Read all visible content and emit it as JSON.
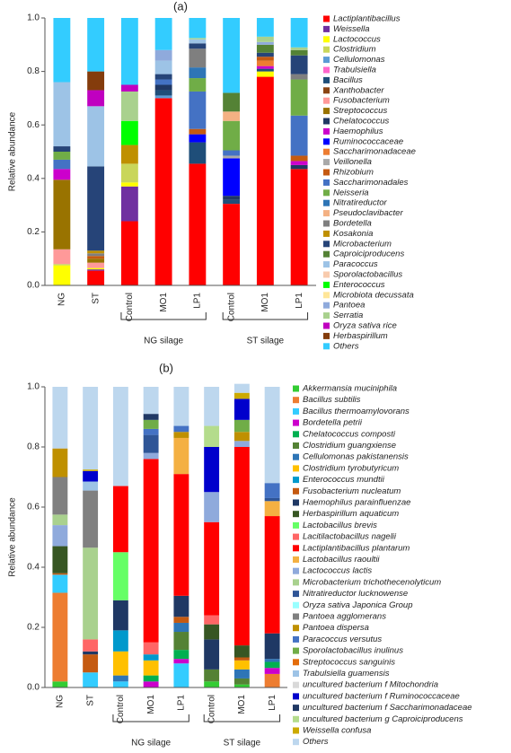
{
  "chart_data": [
    {
      "type": "bar",
      "stacked": true,
      "title": "(a)",
      "y_label": "Relative abundance",
      "categories": [
        "NG",
        "ST",
        "Control",
        "MO1",
        "LP1",
        "Control",
        "MO1",
        "LP1"
      ],
      "category_groups": [
        null,
        null,
        "NG silage",
        "NG silage",
        "NG silage",
        "ST silage",
        "ST silage",
        "ST silage"
      ],
      "ylim": [
        0,
        1
      ],
      "yticks": [
        {
          "value": 0,
          "label": "0.0"
        },
        0.2,
        0.4,
        0.6,
        0.8,
        {
          "value": 1,
          "label": "1.0"
        }
      ],
      "series": [
        {
          "name": "Lactiplantibacillus",
          "color": "#ff0000",
          "values": [
            0,
            0.055,
            0.24,
            0.7,
            0.455,
            0.305,
            0.78,
            0.435
          ]
        },
        {
          "name": "Weissella",
          "color": "#7030a0",
          "values": [
            0,
            0.005,
            0.13,
            0,
            0,
            0,
            0,
            0
          ]
        },
        {
          "name": "Lactococcus",
          "color": "#ffff00",
          "values": [
            0.075,
            0.005,
            0.015,
            0,
            0,
            0,
            0.02,
            0
          ]
        },
        {
          "name": "Clostridium",
          "color": "#c9d65a",
          "values": [
            0.005,
            0,
            0.07,
            0,
            0,
            0,
            0,
            0
          ]
        },
        {
          "name": "Cellulomonas",
          "color": "#5b9bd5",
          "values": [
            0,
            0,
            0,
            0.01,
            0,
            0,
            0,
            0
          ]
        },
        {
          "name": "Trabulsiella",
          "color": "#ff66cc",
          "values": [
            0,
            0,
            0,
            0,
            0,
            0,
            0,
            0
          ]
        },
        {
          "name": "Bacillus",
          "color": "#1f4e79",
          "values": [
            0,
            0,
            0,
            0.02,
            0.08,
            0.015,
            0.01,
            0
          ]
        },
        {
          "name": "Xanthobacter",
          "color": "#8b4513",
          "values": [
            0,
            0,
            0,
            0,
            0,
            0,
            0,
            0
          ]
        },
        {
          "name": "Fusobacterium",
          "color": "#ff9999",
          "values": [
            0.055,
            0.02,
            0,
            0,
            0,
            0,
            0,
            0
          ]
        },
        {
          "name": "Streptococcus",
          "color": "#997300",
          "values": [
            0.26,
            0.015,
            0,
            0,
            0,
            0,
            0,
            0
          ]
        },
        {
          "name": "Chelatococcus",
          "color": "#203864",
          "values": [
            0,
            0,
            0,
            0.02,
            0,
            0.015,
            0,
            0.015
          ]
        },
        {
          "name": "Haemophilus",
          "color": "#cc00cc",
          "values": [
            0.04,
            0,
            0,
            0,
            0,
            0,
            0.01,
            0.015
          ]
        },
        {
          "name": "Ruminococcaceae",
          "color": "#0000ff",
          "values": [
            0,
            0,
            0,
            0,
            0.03,
            0.14,
            0,
            0
          ]
        },
        {
          "name": "Saccharimonadaceae",
          "color": "#ed7d31",
          "values": [
            0,
            0,
            0,
            0,
            0,
            0,
            0.02,
            0
          ]
        },
        {
          "name": "Veillonella",
          "color": "#a9a9a9",
          "values": [
            0,
            0,
            0,
            0,
            0,
            0.01,
            0,
            0
          ]
        },
        {
          "name": "Rhizobium",
          "color": "#c55a11",
          "values": [
            0,
            0.01,
            0,
            0,
            0.02,
            0,
            0.015,
            0.02
          ]
        },
        {
          "name": "Saccharimonadales",
          "color": "#4472c4",
          "values": [
            0.035,
            0,
            0,
            0.02,
            0.14,
            0.02,
            0,
            0.15
          ]
        },
        {
          "name": "Neisseria",
          "color": "#70ad47",
          "values": [
            0.03,
            0,
            0,
            0,
            0.05,
            0.11,
            0,
            0.135
          ]
        },
        {
          "name": "Nitratireductor",
          "color": "#2e75b6",
          "values": [
            0,
            0,
            0,
            0,
            0.04,
            0,
            0,
            0
          ]
        },
        {
          "name": "Pseudoclavibacter",
          "color": "#f4b183",
          "values": [
            0,
            0,
            0,
            0,
            0,
            0.035,
            0,
            0
          ]
        },
        {
          "name": "Bordetella",
          "color": "#7f7f7f",
          "values": [
            0,
            0.01,
            0,
            0,
            0.07,
            0,
            0,
            0.02
          ]
        },
        {
          "name": "Kosakonia",
          "color": "#bf9000",
          "values": [
            0,
            0.01,
            0.07,
            0,
            0,
            0,
            0,
            0
          ]
        },
        {
          "name": "Microbacterium",
          "color": "#264478",
          "values": [
            0.02,
            0.315,
            0,
            0.02,
            0.02,
            0,
            0.015,
            0.07
          ]
        },
        {
          "name": "Caproiciproducens",
          "color": "#548235",
          "values": [
            0,
            0,
            0,
            0,
            0,
            0.07,
            0.03,
            0.02
          ]
        },
        {
          "name": "Paracoccus",
          "color": "#9dc3e6",
          "values": [
            0.24,
            0.225,
            0,
            0.05,
            0.015,
            0,
            0,
            0
          ]
        },
        {
          "name": "Sporolactobacillus",
          "color": "#f8cbad",
          "values": [
            0,
            0,
            0,
            0,
            0,
            0,
            0,
            0
          ]
        },
        {
          "name": "Enterococcus",
          "color": "#00ff00",
          "values": [
            0,
            0,
            0.09,
            0,
            0,
            0,
            0,
            0
          ]
        },
        {
          "name": "Microbiota decussata",
          "color": "#ffe699",
          "values": [
            0,
            0,
            0,
            0,
            0,
            0,
            0,
            0
          ]
        },
        {
          "name": "Pantoea",
          "color": "#8faadc",
          "values": [
            0,
            0,
            0,
            0.04,
            0,
            0,
            0.01,
            0
          ]
        },
        {
          "name": "Serratia",
          "color": "#a9d18e",
          "values": [
            0,
            0,
            0.11,
            0,
            0.005,
            0,
            0.02,
            0.01
          ]
        },
        {
          "name": "Oryza sativa rice",
          "color": "#c000c0",
          "values": [
            0,
            0.06,
            0.025,
            0,
            0,
            0,
            0,
            0
          ]
        },
        {
          "name": "Herbaspirillum",
          "color": "#843c0c",
          "values": [
            0,
            0.07,
            0,
            0,
            0,
            0,
            0,
            0
          ]
        },
        {
          "name": "Others",
          "color": "#33ccff",
          "values": [
            0.24,
            0.2,
            0.25,
            0.12,
            0.075,
            0.28,
            0.07,
            0.11
          ]
        }
      ]
    },
    {
      "type": "bar",
      "stacked": true,
      "title": "(b)",
      "y_label": "Relative abundance",
      "categories": [
        "NG",
        "ST",
        "Control",
        "MO1",
        "LP1",
        "Control",
        "MO1",
        "LP1"
      ],
      "category_groups": [
        null,
        null,
        "NG silage",
        "NG silage",
        "NG silage",
        "ST silage",
        "ST silage",
        "ST silage"
      ],
      "ylim": [
        0,
        1
      ],
      "yticks": [
        {
          "value": 0,
          "label": "0.0"
        },
        0.2,
        0.4,
        0.6,
        0.8,
        {
          "value": 1,
          "label": "1.0"
        }
      ],
      "series": [
        {
          "name": "Akkermansia muciniphila",
          "color": "#33cc33",
          "values": [
            0.02,
            0,
            0,
            0,
            0,
            0.02,
            0.01,
            0
          ]
        },
        {
          "name": "Bacillus subtilis",
          "color": "#ed7d31",
          "values": [
            0.295,
            0,
            0,
            0,
            0,
            0,
            0,
            0.045
          ]
        },
        {
          "name": "Bacillus thermoamylovorans",
          "color": "#33ccff",
          "values": [
            0.06,
            0.05,
            0.02,
            0,
            0.08,
            0,
            0,
            0
          ]
        },
        {
          "name": "Bordetella petrii",
          "color": "#cc00cc",
          "values": [
            0,
            0,
            0,
            0.02,
            0.015,
            0,
            0,
            0.02
          ]
        },
        {
          "name": "Chelatococcus composti",
          "color": "#00b050",
          "values": [
            0,
            0,
            0,
            0.02,
            0.03,
            0,
            0,
            0.02
          ]
        },
        {
          "name": "Clostridium guangxiense",
          "color": "#548235",
          "values": [
            0,
            0,
            0,
            0,
            0.06,
            0.04,
            0.02,
            0
          ]
        },
        {
          "name": "Cellulomonas pakistanensis",
          "color": "#2e75b6",
          "values": [
            0,
            0,
            0.02,
            0,
            0.03,
            0,
            0.03,
            0.01
          ]
        },
        {
          "name": "Clostridium tyrobutyricum",
          "color": "#ffc000",
          "values": [
            0,
            0,
            0.08,
            0.05,
            0,
            0,
            0.03,
            0
          ]
        },
        {
          "name": "Enterococcus mundtii",
          "color": "#0099cc",
          "values": [
            0,
            0,
            0.07,
            0.02,
            0,
            0,
            0,
            0
          ]
        },
        {
          "name": "Fusobacterium nucleatum",
          "color": "#c55a11",
          "values": [
            0.005,
            0.06,
            0,
            0,
            0.02,
            0,
            0.01,
            0
          ]
        },
        {
          "name": "Haemophilus parainfluenzae",
          "color": "#1f3864",
          "values": [
            0,
            0.01,
            0.1,
            0,
            0.07,
            0.1,
            0,
            0.085
          ]
        },
        {
          "name": "Herbaspirillum aquaticum",
          "color": "#375623",
          "values": [
            0.09,
            0,
            0,
            0,
            0,
            0.05,
            0.04,
            0
          ]
        },
        {
          "name": "Lactobacillus brevis",
          "color": "#66ff66",
          "values": [
            0,
            0,
            0.16,
            0,
            0,
            0,
            0,
            0
          ]
        },
        {
          "name": "Lacitilactobacillus nagelii",
          "color": "#ff6666",
          "values": [
            0,
            0.04,
            0,
            0.04,
            0,
            0.03,
            0,
            0
          ]
        },
        {
          "name": "Lactiplantibacillus plantarum",
          "color": "#ff0000",
          "values": [
            0,
            0,
            0.22,
            0.61,
            0.405,
            0.31,
            0.66,
            0.39
          ]
        },
        {
          "name": "Lactobacillus raoultii",
          "color": "#f4b042",
          "values": [
            0,
            0,
            0,
            0,
            0.12,
            0,
            0,
            0.05
          ]
        },
        {
          "name": "Lactococcus lactis",
          "color": "#8faadc",
          "values": [
            0.07,
            0,
            0,
            0.02,
            0,
            0.1,
            0.02,
            0
          ]
        },
        {
          "name": "Microbacterium trichothecenolyticum",
          "color": "#a9d18e",
          "values": [
            0.035,
            0.305,
            0,
            0,
            0,
            0,
            0,
            0
          ]
        },
        {
          "name": "Nitratireductor lucknowense",
          "color": "#2f5597",
          "values": [
            0,
            0,
            0,
            0.06,
            0,
            0,
            0,
            0.01
          ]
        },
        {
          "name": "Oryza sativa Japonica Group",
          "color": "#99ffff",
          "values": [
            0,
            0,
            0,
            0,
            0,
            0,
            0,
            0
          ]
        },
        {
          "name": "Pantoea agglomerans",
          "color": "#808080",
          "values": [
            0.125,
            0.19,
            0,
            0,
            0,
            0,
            0,
            0
          ]
        },
        {
          "name": "Pantoea dispersa",
          "color": "#bf9000",
          "values": [
            0.095,
            0,
            0,
            0,
            0.02,
            0,
            0.03,
            0
          ]
        },
        {
          "name": "Paracoccus versutus",
          "color": "#4472c4",
          "values": [
            0,
            0,
            0,
            0.02,
            0.02,
            0,
            0,
            0.05
          ]
        },
        {
          "name": "Sporolactobacillus inulinus",
          "color": "#70ad47",
          "values": [
            0,
            0,
            0,
            0.03,
            0,
            0,
            0.04,
            0
          ]
        },
        {
          "name": "Streptococcus sanguinis",
          "color": "#e46c0a",
          "values": [
            0,
            0,
            0,
            0,
            0,
            0,
            0,
            0
          ]
        },
        {
          "name": "Trabulsiella guamensis",
          "color": "#9dc3e6",
          "values": [
            0,
            0.03,
            0,
            0,
            0,
            0,
            0,
            0
          ]
        },
        {
          "name": "uncultured bacterium f Mitochondria",
          "color": "#d9d9d9",
          "values": [
            0,
            0,
            0,
            0,
            0,
            0,
            0,
            0
          ]
        },
        {
          "name": "uncultured bacterium f Ruminococcaceae",
          "color": "#0000cc",
          "values": [
            0,
            0.035,
            0,
            0,
            0,
            0.15,
            0.07,
            0
          ]
        },
        {
          "name": "uncultured bacterium f Saccharimonadaceae",
          "color": "#203864",
          "values": [
            0,
            0,
            0,
            0.02,
            0,
            0,
            0,
            0
          ]
        },
        {
          "name": "uncultured bacterium g Caproiciproducens",
          "color": "#b4dc8c",
          "values": [
            0,
            0,
            0,
            0,
            0,
            0.07,
            0,
            0
          ]
        },
        {
          "name": "Weissella confusa",
          "color": "#ccaa00",
          "values": [
            0,
            0.005,
            0,
            0,
            0,
            0,
            0.02,
            0
          ]
        },
        {
          "name": "Others",
          "color": "#bdd7ee",
          "values": [
            0.205,
            0.275,
            0.33,
            0.09,
            0.13,
            0.13,
            0.03,
            0.32
          ]
        }
      ]
    }
  ]
}
